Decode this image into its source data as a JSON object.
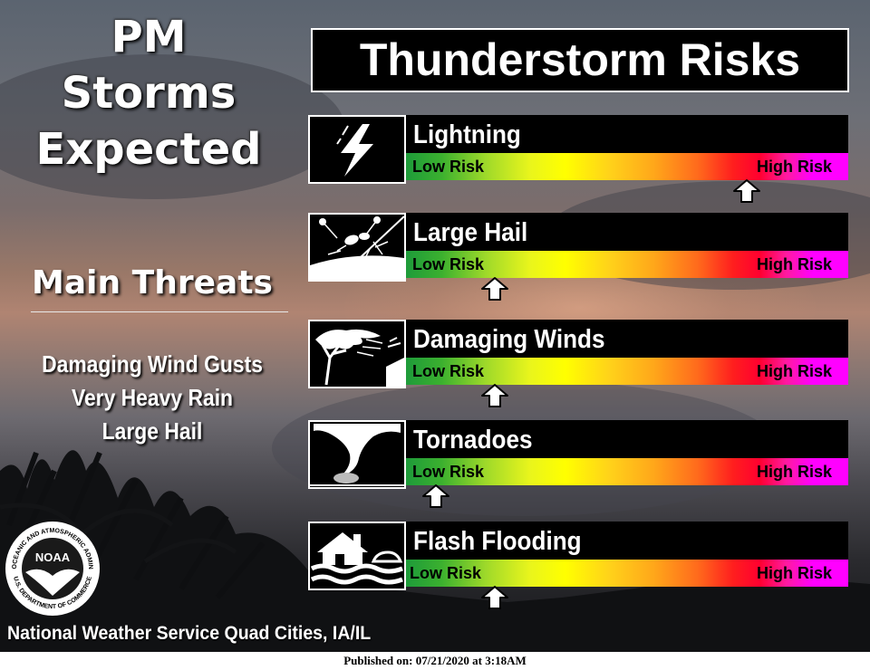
{
  "left_panel": {
    "headline": [
      "PM",
      "Storms",
      "Expected"
    ],
    "threats_title": "Main Threats",
    "threats": [
      "Damaging Wind Gusts",
      "Very Heavy Rain",
      "Large Hail"
    ]
  },
  "main_title": "Thunderstorm Risks",
  "scale": {
    "low_label": "Low Risk",
    "high_label": "High Risk"
  },
  "risks": [
    {
      "name": "Lightning",
      "icon": "lightning-bolt-icon",
      "level": 0.85
    },
    {
      "name": "Large Hail",
      "icon": "hail-icon",
      "level": 0.2
    },
    {
      "name": "Damaging Winds",
      "icon": "wind-tree-icon",
      "level": 0.2
    },
    {
      "name": "Tornadoes",
      "icon": "tornado-icon",
      "level": 0.05
    },
    {
      "name": "Flash Flooding",
      "icon": "flood-house-icon",
      "level": 0.2
    }
  ],
  "footer": {
    "office": "National Weather Service Quad Cities, IA/IL",
    "logo_text": "NOAA",
    "logo_ring_top": "NATIONAL OCEANIC AND ATMOSPHERIC ADMINISTRATION",
    "logo_ring_bottom": "U.S. DEPARTMENT OF COMMERCE",
    "published": "Published on: 07/21/2020 at 3:18AM"
  },
  "colors": {
    "low": "#1e9b3a",
    "mid": "#ffff00",
    "high_red": "#ff0030",
    "high": "#ff00ff"
  }
}
